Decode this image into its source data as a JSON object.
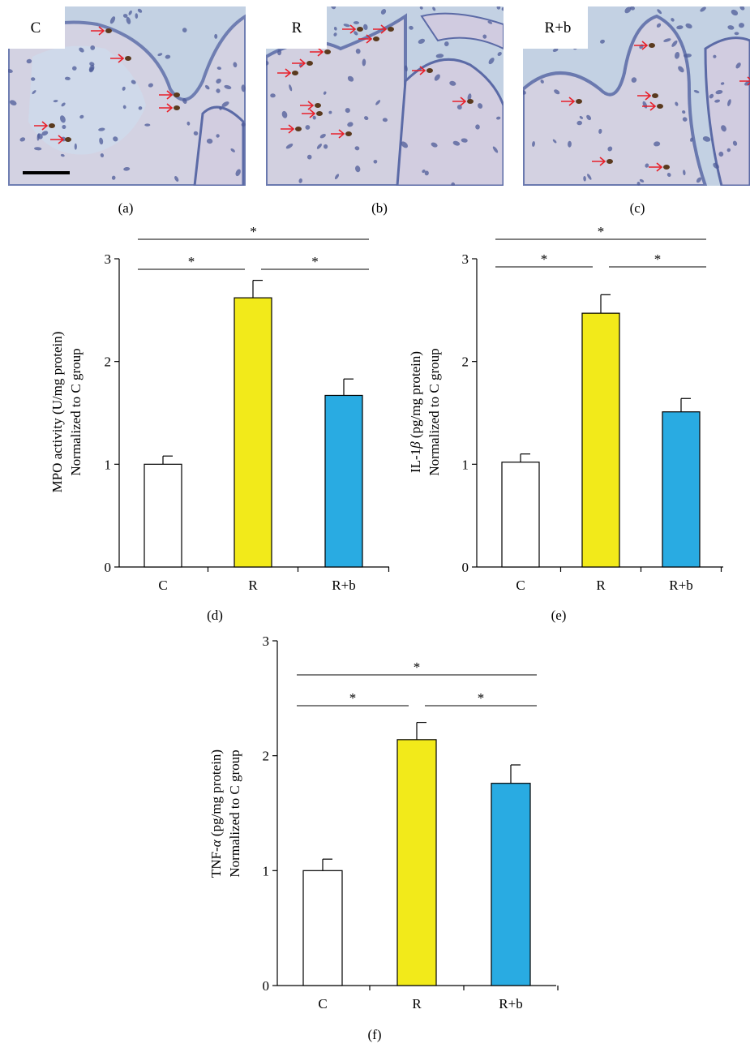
{
  "colors": {
    "bar_C": "#ffffff",
    "bar_R": "#f2ea1a",
    "bar_Rb": "#29abe2",
    "arrow": "#e8202a",
    "tissue_bg": "#c3d1e3",
    "nucleus_blue": "#4d5b98",
    "nucleus_brown": "#5a3a1e"
  },
  "micrographs": [
    {
      "tag": "C",
      "panel_label": "(a)",
      "arrow_count": 7,
      "has_scale_bar": true
    },
    {
      "tag": "R",
      "panel_label": "(b)",
      "arrow_count": 14,
      "has_scale_bar": false
    },
    {
      "tag": "R+b",
      "panel_label": "(c)",
      "arrow_count": 9,
      "has_scale_bar": false
    }
  ],
  "chart_data": [
    {
      "type": "bar",
      "panel_label": "(d)",
      "categories": [
        "C",
        "R",
        "R+b"
      ],
      "values": [
        1.0,
        2.62,
        1.67
      ],
      "errors": [
        0.08,
        0.17,
        0.16
      ],
      "ylabel_line1": "MPO activity (U/mg protein)",
      "ylabel_line2": "Normalized to C group",
      "ylim": [
        0,
        3
      ],
      "yticks": [
        0,
        1,
        2,
        3
      ],
      "significance": [
        {
          "from": 0,
          "to": 2,
          "label": "*"
        },
        {
          "from": 0,
          "to": 1,
          "label": "*"
        },
        {
          "from": 1,
          "to": 2,
          "label": "*"
        }
      ]
    },
    {
      "type": "bar",
      "panel_label": "(e)",
      "categories": [
        "C",
        "R",
        "R+b"
      ],
      "values": [
        1.02,
        2.47,
        1.51
      ],
      "errors": [
        0.08,
        0.18,
        0.13
      ],
      "ylabel_prefix": "IL-1",
      "ylabel_greek": "β",
      "ylabel_suffix": " (pg/mg protein)",
      "ylabel_line2": "Normalized to C group",
      "ylim": [
        0,
        3
      ],
      "yticks": [
        0,
        1,
        2,
        3
      ],
      "significance": [
        {
          "from": 0,
          "to": 2,
          "label": "*"
        },
        {
          "from": 0,
          "to": 1,
          "label": "*"
        },
        {
          "from": 1,
          "to": 2,
          "label": "*"
        }
      ]
    },
    {
      "type": "bar",
      "panel_label": "(f)",
      "categories": [
        "C",
        "R",
        "R+b"
      ],
      "values": [
        1.0,
        2.14,
        1.76
      ],
      "errors": [
        0.1,
        0.15,
        0.16
      ],
      "ylabel_prefix": "TNF-",
      "ylabel_greek": "α",
      "ylabel_suffix": " (pg/mg protein)",
      "ylabel_line2": "Normalized to C group",
      "ylim": [
        0,
        3
      ],
      "yticks": [
        0,
        1,
        2,
        3
      ],
      "significance": [
        {
          "from": 0,
          "to": 2,
          "label": "*"
        },
        {
          "from": 0,
          "to": 1,
          "label": "*"
        },
        {
          "from": 1,
          "to": 2,
          "label": "*"
        }
      ]
    }
  ]
}
